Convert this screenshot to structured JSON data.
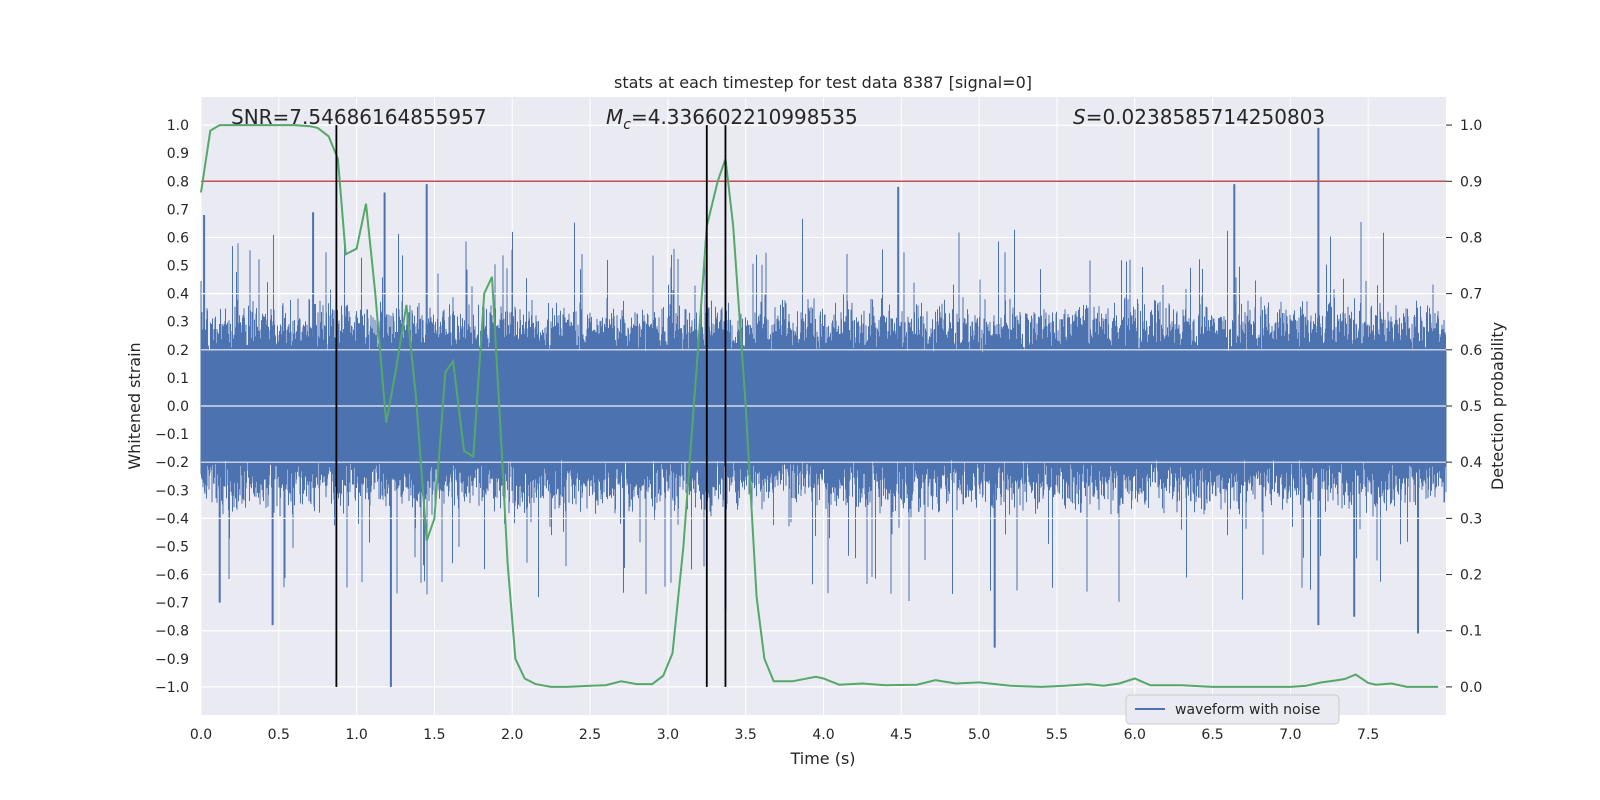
{
  "colors": {
    "axes_bg": "#eaeaf2",
    "grid": "#ffffff",
    "waveform": "#4c72b0",
    "probability": "#55a868",
    "threshold": "#c44e52",
    "markers": "#000000",
    "text": "#262626"
  },
  "chart_data": {
    "type": "line",
    "title": "stats at each timestep for test data 8387 [signal=0]",
    "xlabel": "Time (s)",
    "ylabel_left": "Whitened strain",
    "ylabel_right": "Detection probability",
    "xlim": [
      0.0,
      8.0
    ],
    "ylim_left": [
      -1.1,
      1.1
    ],
    "ylim_right": [
      -0.05,
      1.05
    ],
    "x_ticks": [
      "0.0",
      "0.5",
      "1.0",
      "1.5",
      "2.0",
      "2.5",
      "3.0",
      "3.5",
      "4.0",
      "4.5",
      "5.0",
      "5.5",
      "6.0",
      "6.5",
      "7.0",
      "7.5"
    ],
    "y_left_ticks": [
      "1.0",
      "0.9",
      "0.8",
      "0.7",
      "0.6",
      "0.5",
      "0.4",
      "0.3",
      "0.2",
      "0.1",
      "0.0",
      "−0.1",
      "−0.2",
      "−0.3",
      "−0.4",
      "−0.5",
      "−0.6",
      "−0.7",
      "−0.8",
      "−0.9",
      "−1.0"
    ],
    "y_right_ticks": [
      "1.0",
      "0.9",
      "0.8",
      "0.7",
      "0.6",
      "0.5",
      "0.4",
      "0.3",
      "0.2",
      "0.1",
      "0.0"
    ],
    "annotations": {
      "snr": "SNR=7.54686164855957",
      "mc_symbol": "M",
      "mc_sub": "c",
      "mc_value": "=4.336602210998535",
      "s_symbol": "S",
      "s_value": "=0.0238585714250803"
    },
    "threshold_probability": 0.9,
    "vertical_markers_s": [
      0.87,
      3.25,
      3.37
    ],
    "legend": [
      "waveform with noise"
    ],
    "waveform": {
      "name": "waveform with noise",
      "core_amplitude": 0.19,
      "typical_peak": 0.4,
      "notable_peaks": [
        {
          "t": 0.02,
          "v": 0.68
        },
        {
          "t": 0.72,
          "v": 0.69
        },
        {
          "t": 1.45,
          "v": 0.79
        },
        {
          "t": 1.18,
          "v": 0.76
        },
        {
          "t": 4.48,
          "v": 0.78
        },
        {
          "t": 6.64,
          "v": 0.79
        },
        {
          "t": 7.18,
          "v": 0.99
        },
        {
          "t": 7.18,
          "v": -0.78
        },
        {
          "t": 1.22,
          "v": -1.0
        },
        {
          "t": 0.46,
          "v": -0.78
        },
        {
          "t": 5.1,
          "v": -0.86
        },
        {
          "t": 7.41,
          "v": -0.75
        },
        {
          "t": 7.82,
          "v": -0.81
        },
        {
          "t": 3.37,
          "v": -0.73
        },
        {
          "t": 0.12,
          "v": -0.7
        }
      ]
    },
    "probability": {
      "name": "Detection probability",
      "x": [
        0.0,
        0.06,
        0.12,
        0.2,
        0.3,
        0.4,
        0.5,
        0.6,
        0.7,
        0.75,
        0.82,
        0.88,
        0.93,
        1.0,
        1.06,
        1.12,
        1.19,
        1.25,
        1.32,
        1.38,
        1.45,
        1.5,
        1.57,
        1.62,
        1.69,
        1.75,
        1.82,
        1.87,
        1.93,
        1.97,
        2.02,
        2.08,
        2.15,
        2.25,
        2.35,
        2.5,
        2.6,
        2.7,
        2.8,
        2.9,
        2.97,
        3.03,
        3.1,
        3.18,
        3.25,
        3.32,
        3.37,
        3.42,
        3.5,
        3.57,
        3.62,
        3.68,
        3.8,
        3.95,
        4.0,
        4.1,
        4.25,
        4.4,
        4.6,
        4.72,
        4.85,
        5.0,
        5.2,
        5.4,
        5.55,
        5.7,
        5.8,
        5.9,
        6.0,
        6.1,
        6.3,
        6.5,
        6.8,
        7.0,
        7.1,
        7.2,
        7.3,
        7.35,
        7.42,
        7.5,
        7.55,
        7.65,
        7.75,
        7.85,
        7.95
      ],
      "y": [
        0.88,
        0.99,
        1.0,
        1.0,
        1.0,
        1.0,
        1.0,
        1.0,
        0.998,
        0.995,
        0.98,
        0.94,
        0.77,
        0.78,
        0.86,
        0.7,
        0.47,
        0.56,
        0.68,
        0.52,
        0.26,
        0.3,
        0.56,
        0.58,
        0.42,
        0.41,
        0.7,
        0.73,
        0.43,
        0.22,
        0.05,
        0.015,
        0.005,
        0.0,
        0.0,
        0.002,
        0.003,
        0.01,
        0.005,
        0.005,
        0.02,
        0.06,
        0.25,
        0.55,
        0.82,
        0.9,
        0.94,
        0.82,
        0.5,
        0.16,
        0.05,
        0.01,
        0.01,
        0.018,
        0.015,
        0.004,
        0.006,
        0.003,
        0.004,
        0.012,
        0.006,
        0.008,
        0.002,
        0.0,
        0.002,
        0.005,
        0.002,
        0.006,
        0.015,
        0.003,
        0.003,
        0.0,
        0.0,
        0.0,
        0.002,
        0.008,
        0.012,
        0.014,
        0.022,
        0.007,
        0.004,
        0.006,
        0.0,
        0.0,
        0.0
      ]
    }
  }
}
